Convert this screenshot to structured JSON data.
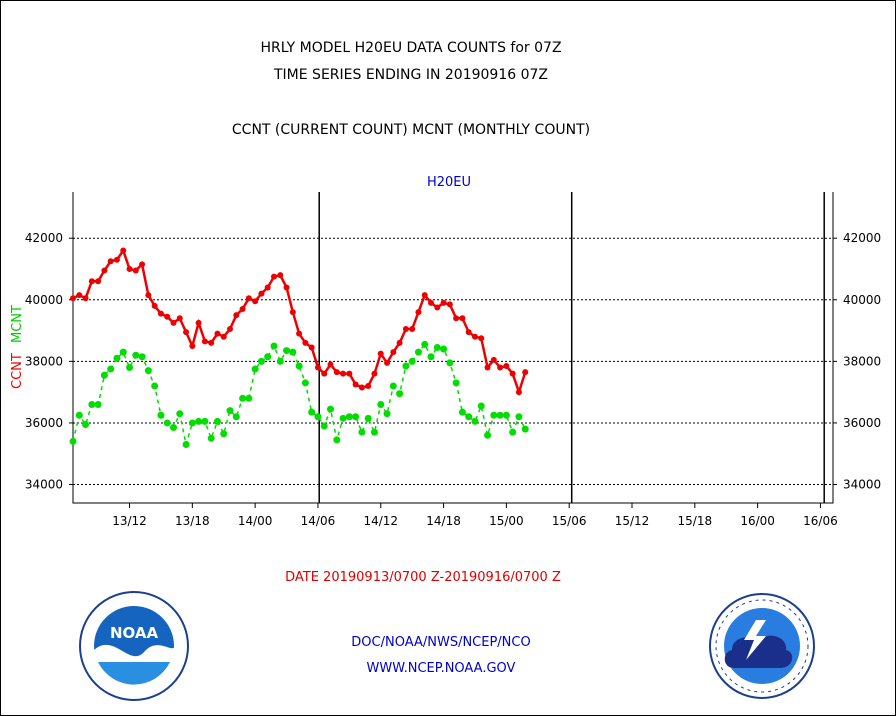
{
  "titles": {
    "line1": "HRLY MODEL H20EU DATA COUNTS for 07Z",
    "line2": "TIME SERIES ENDING IN 20190916 07Z",
    "line3": "CCNT (CURRENT COUNT) MCNT (MONTHLY COUNT)"
  },
  "footer": {
    "date_range": "DATE 20190913/0700 Z-20190916/0700 Z",
    "org": "DOC/NOAA/NWS/NCEP/NCO",
    "url": "WWW.NCEP.NOAA.GOV"
  },
  "logos": {
    "left": {
      "icon": "noaa-logo",
      "text": "NOAA"
    },
    "right": {
      "icon": "national-weather-service-logo",
      "text": "NATIONAL WEATHER SERVICE"
    }
  },
  "colors": {
    "ccnt": "#ee0000",
    "mcnt": "#00dd00",
    "label": "#0000cc",
    "date": "#dd0000"
  },
  "chart_data": {
    "type": "line",
    "title": "H20EU",
    "ylabel_ccnt": "CCNT",
    "ylabel_mcnt": "MCNT",
    "ylim": [
      33400,
      43500
    ],
    "yticks": [
      34000,
      36000,
      38000,
      40000,
      42000
    ],
    "ytick_labels": [
      "34000",
      "36000",
      "38000",
      "40000",
      "42000"
    ],
    "xlim": [
      0,
      121
    ],
    "xticks": [
      {
        "x": 9,
        "label": "13/12"
      },
      {
        "x": 19,
        "label": "13/18"
      },
      {
        "x": 29,
        "label": "14/00"
      },
      {
        "x": 39,
        "label": "14/06"
      },
      {
        "x": 49,
        "label": "14/12"
      },
      {
        "x": 59,
        "label": "14/18"
      },
      {
        "x": 69,
        "label": "15/00"
      },
      {
        "x": 79,
        "label": "15/06"
      },
      {
        "x": 89,
        "label": "15/12"
      },
      {
        "x": 99,
        "label": "15/18"
      },
      {
        "x": 109,
        "label": "16/00"
      },
      {
        "x": 119,
        "label": "16/06"
      }
    ],
    "vlines": [
      39.2,
      79.4,
      119.6
    ],
    "grid": true,
    "series": [
      {
        "name": "CCNT",
        "values": [
          40050,
          40150,
          40050,
          40600,
          40600,
          40950,
          41250,
          41300,
          41600,
          41000,
          40950,
          41150,
          40150,
          39800,
          39550,
          39450,
          39250,
          39400,
          38950,
          38500,
          39250,
          38650,
          38600,
          38900,
          38800,
          39050,
          39500,
          39700,
          40050,
          39950,
          40200,
          40400,
          40750,
          40800,
          40400,
          39600,
          38900,
          38600,
          38450,
          37800,
          37600,
          37900,
          37650,
          37600,
          37600,
          37250,
          37150,
          37200,
          37600,
          38250,
          37950,
          38300,
          38600,
          39050,
          39050,
          39600,
          40150,
          39900,
          39750,
          39900,
          39850,
          39400,
          39400,
          38950,
          38800,
          38750,
          37800,
          38050,
          37800,
          37850,
          37600,
          37000,
          37650
        ]
      },
      {
        "name": "MCNT",
        "values": [
          35400,
          36250,
          35950,
          36600,
          36600,
          37550,
          37750,
          38100,
          38300,
          37800,
          38200,
          38150,
          37700,
          37200,
          36250,
          36000,
          35850,
          36300,
          35300,
          36000,
          36050,
          36050,
          35500,
          36050,
          35650,
          36400,
          36200,
          36800,
          36800,
          37750,
          38000,
          38150,
          38500,
          38000,
          38350,
          38300,
          37850,
          37300,
          36350,
          36200,
          35900,
          36450,
          35450,
          36150,
          36200,
          36200,
          35700,
          36150,
          35700,
          36600,
          36300,
          37200,
          36950,
          37850,
          38000,
          38300,
          38550,
          38150,
          38450,
          38400,
          37950,
          37300,
          36350,
          36200,
          36050,
          36550,
          35600,
          36250,
          36250,
          36250,
          35700,
          36200,
          35800
        ]
      }
    ]
  }
}
